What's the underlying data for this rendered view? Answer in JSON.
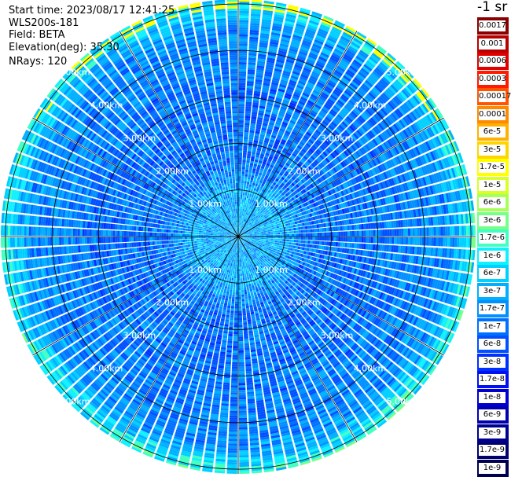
{
  "info": {
    "start_time": "Start time: 2023/08/17 12:41:25",
    "device": "WLS200s-181",
    "field": "Field: BETA",
    "elevation": "Elevation(deg): 35.30",
    "nrays": "NRays: 120"
  },
  "colorbar": {
    "unit": "-1 sr",
    "entries": [
      {
        "label": "0.0017",
        "color": "#8a0000"
      },
      {
        "label": "0.001",
        "color": "#b80000"
      },
      {
        "label": "0.0006",
        "color": "#e00000"
      },
      {
        "label": "0.0003",
        "color": "#ff1a00"
      },
      {
        "label": "0.00017",
        "color": "#ff5500"
      },
      {
        "label": "0.0001",
        "color": "#ff8a00"
      },
      {
        "label": "6e-5",
        "color": "#ffb000"
      },
      {
        "label": "3e-5",
        "color": "#ffd500"
      },
      {
        "label": "1.7e-5",
        "color": "#ffff00"
      },
      {
        "label": "1e-5",
        "color": "#d8ff28"
      },
      {
        "label": "6e-6",
        "color": "#a8ff58"
      },
      {
        "label": "3e-6",
        "color": "#78ff88"
      },
      {
        "label": "1.7e-6",
        "color": "#40ffc0"
      },
      {
        "label": "1e-6",
        "color": "#10f0ff"
      },
      {
        "label": "6e-7",
        "color": "#00d0ff"
      },
      {
        "label": "3e-7",
        "color": "#00b0ff"
      },
      {
        "label": "1.7e-7",
        "color": "#0090ff"
      },
      {
        "label": "1e-7",
        "color": "#0070ff"
      },
      {
        "label": "6e-8",
        "color": "#0050ff"
      },
      {
        "label": "3e-8",
        "color": "#0030ff"
      },
      {
        "label": "1.7e-8",
        "color": "#0010f0"
      },
      {
        "label": "1e-8",
        "color": "#0000d0"
      },
      {
        "label": "6e-9",
        "color": "#0000b0"
      },
      {
        "label": "3e-9",
        "color": "#000090"
      },
      {
        "label": "1.7e-9",
        "color": "#000070"
      },
      {
        "label": "1e-9",
        "color": "#000050"
      }
    ]
  },
  "chart_data": {
    "type": "heatmap",
    "projection": "polar (PPI)",
    "field": "BETA",
    "elevation_deg": 35.3,
    "n_rays": 120,
    "range_rings_km": [
      1,
      2,
      3,
      4,
      5
    ],
    "range_ring_labels": [
      "1.00km",
      "2.00km",
      "3.00km",
      "4.00km",
      "5.00km"
    ],
    "max_range_km": 5.1,
    "azimuth_spokes_deg": [
      0,
      30,
      60,
      90,
      120,
      150,
      180,
      210,
      240,
      270,
      300,
      330
    ],
    "color_scale": "log",
    "value_range": [
      1e-09,
      0.0017
    ],
    "typical_value_by_range": [
      {
        "range_km": 0.0,
        "value": 3e-07
      },
      {
        "range_km": 1.0,
        "value": 3e-07
      },
      {
        "range_km": 1.5,
        "value": 1e-07
      },
      {
        "range_km": 3.0,
        "value": 1e-07
      },
      {
        "range_km": 4.5,
        "value": 1.7e-07
      },
      {
        "range_km": 5.0,
        "value": 1e-06
      }
    ],
    "max_value_region": {
      "azimuth_deg": [
        300,
        60
      ],
      "range_km": [
        4.9,
        5.1
      ],
      "value": 1.7e-05
    }
  }
}
